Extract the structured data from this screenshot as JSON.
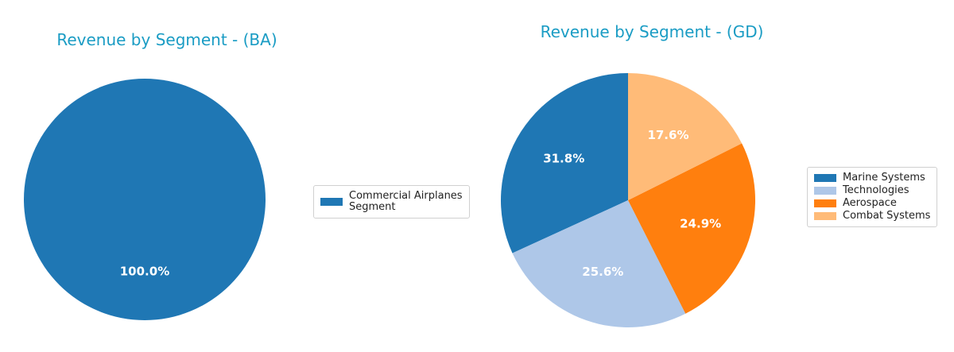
{
  "chart_data": [
    {
      "type": "pie",
      "title": "Revenue by Segment - (BA)",
      "categories": [
        "Commercial Airplanes\nSegment"
      ],
      "values": [
        100.0
      ],
      "value_labels": [
        "100.0%"
      ],
      "colors": [
        "#1f77b4"
      ]
    },
    {
      "type": "pie",
      "title": "Revenue by Segment - (GD)",
      "categories": [
        "Marine Systems",
        "Technologies",
        "Aerospace",
        "Combat Systems"
      ],
      "values": [
        31.8,
        25.6,
        24.9,
        17.6
      ],
      "value_labels": [
        "31.8%",
        "25.6%",
        "24.9%",
        "17.6%"
      ],
      "colors": [
        "#1f77b4",
        "#aec7e8",
        "#ff7f0e",
        "#ffbb78"
      ]
    }
  ]
}
